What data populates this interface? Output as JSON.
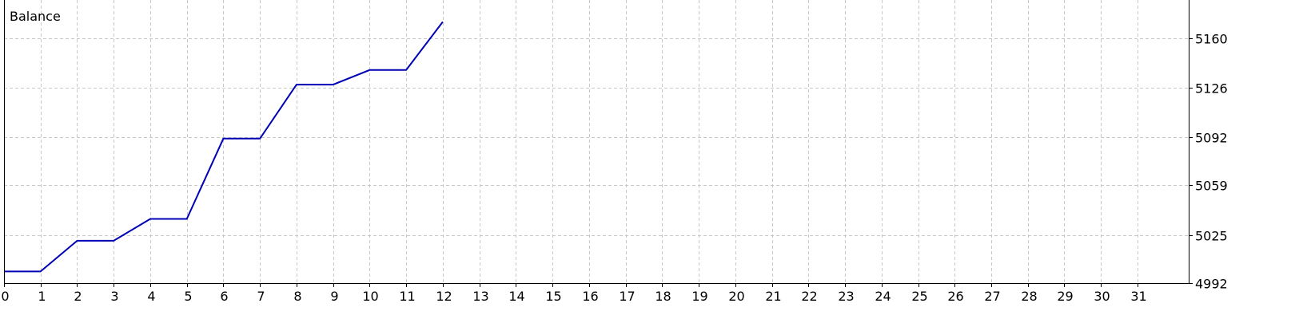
{
  "chart_data": {
    "type": "line",
    "title": "Balance",
    "xlabel": "",
    "ylabel": "",
    "x_ticks": [
      "0",
      "1",
      "2",
      "3",
      "4",
      "5",
      "6",
      "7",
      "8",
      "9",
      "10",
      "11",
      "12",
      "13",
      "14",
      "15",
      "16",
      "17",
      "18",
      "19",
      "20",
      "21",
      "22",
      "23",
      "24",
      "25",
      "26",
      "27",
      "28",
      "29",
      "30",
      "31"
    ],
    "y_ticks": [
      "4992",
      "5025",
      "5059",
      "5092",
      "5126",
      "5160"
    ],
    "xlim": [
      0,
      32.4
    ],
    "ylim": [
      4992,
      5186
    ],
    "grid": true,
    "y_axis_position": "right",
    "series": [
      {
        "color": "#0000b4",
        "x": [
          0,
          1,
          2,
          3,
          4,
          5,
          6,
          7,
          8,
          9,
          10,
          11,
          12
        ],
        "y": [
          5000,
          5000,
          5021,
          5021,
          5036,
          5036,
          5091,
          5091,
          5128,
          5128,
          5138,
          5138,
          5171
        ]
      }
    ]
  }
}
